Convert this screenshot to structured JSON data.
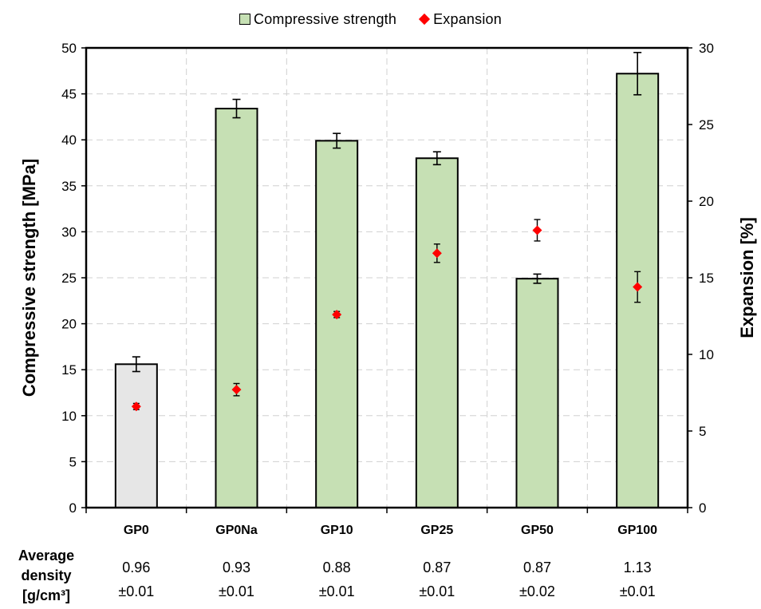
{
  "legend": {
    "bar_label": "Compressive strength",
    "marker_label": "Expansion"
  },
  "density": {
    "header_line1": "Average",
    "header_line2": "density",
    "header_line3": "[g/cm³]",
    "values": [
      {
        "mean": "0.96",
        "sd": "±0.01"
      },
      {
        "mean": "0.93",
        "sd": "±0.01"
      },
      {
        "mean": "0.88",
        "sd": "±0.01"
      },
      {
        "mean": "0.87",
        "sd": "±0.01"
      },
      {
        "mean": "0.87",
        "sd": "±0.02"
      },
      {
        "mean": "1.13",
        "sd": "±0.01"
      }
    ]
  },
  "colors": {
    "bar_green": "#c6e0b4",
    "bar_gray": "#e6e6e6",
    "marker": "#ff0000",
    "grid": "#d0d0d0"
  },
  "chart_data": {
    "type": "bar",
    "categories": [
      "GP0",
      "GP0Na",
      "GP10",
      "GP25",
      "GP50",
      "GP100"
    ],
    "series": [
      {
        "name": "Compressive strength",
        "type": "bar",
        "axis": "left",
        "values": [
          15.6,
          43.4,
          39.9,
          38.0,
          24.9,
          47.2
        ],
        "errors": [
          0.8,
          1.0,
          0.8,
          0.7,
          0.5,
          2.3
        ],
        "bar_colors": [
          "#e6e6e6",
          "#c6e0b4",
          "#c6e0b4",
          "#c6e0b4",
          "#c6e0b4",
          "#c6e0b4"
        ]
      },
      {
        "name": "Expansion",
        "type": "scatter",
        "axis": "right",
        "values": [
          6.6,
          7.7,
          12.6,
          16.6,
          18.1,
          14.4
        ],
        "errors": [
          0.2,
          0.4,
          0.2,
          0.6,
          0.7,
          1.0
        ]
      }
    ],
    "ylabel": "Compressive strength [MPa]",
    "y2label": "Expansion [%]",
    "ylim": [
      0,
      50
    ],
    "y2lim": [
      0,
      30
    ],
    "yticks": [
      0,
      5,
      10,
      15,
      20,
      25,
      30,
      35,
      40,
      45,
      50
    ],
    "y2ticks": [
      0,
      5,
      10,
      15,
      20,
      25,
      30
    ],
    "grid": true,
    "legend_position": "top"
  }
}
